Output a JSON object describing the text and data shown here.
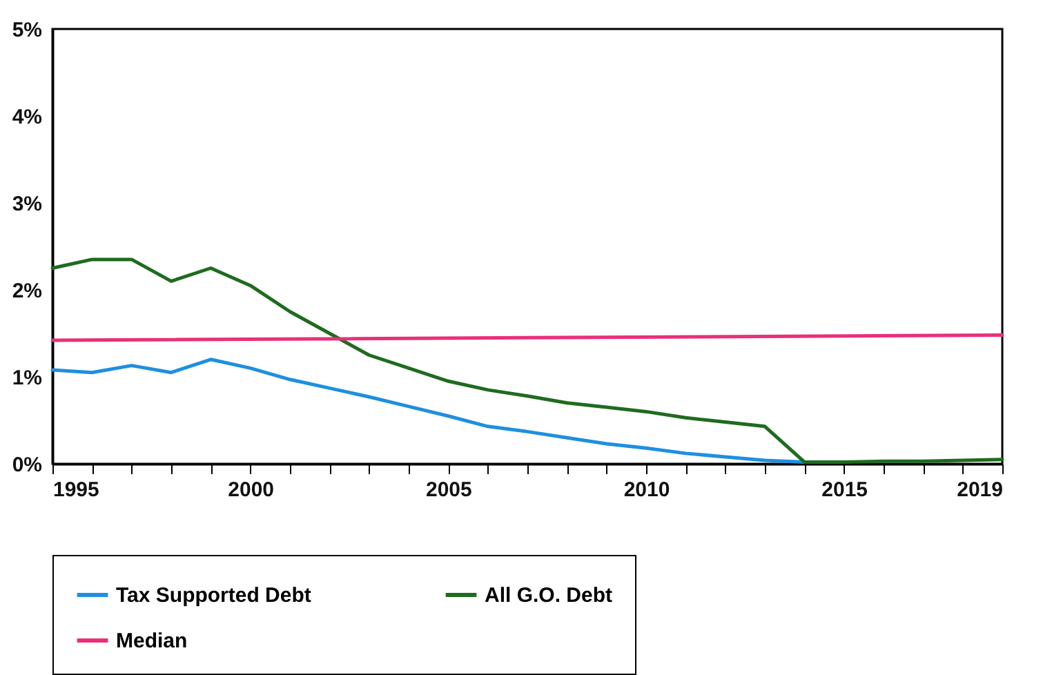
{
  "chart_data": {
    "type": "line",
    "x": [
      1995,
      1996,
      1997,
      1998,
      1999,
      2000,
      2001,
      2002,
      2003,
      2004,
      2005,
      2006,
      2007,
      2008,
      2009,
      2010,
      2011,
      2012,
      2013,
      2014,
      2015,
      2016,
      2017,
      2018,
      2019
    ],
    "series": [
      {
        "name": "Tax Supported Debt",
        "color": "#1e8fe0",
        "values": [
          1.08,
          1.05,
          1.13,
          1.05,
          1.2,
          1.1,
          0.97,
          0.87,
          0.77,
          0.66,
          0.55,
          0.43,
          0.37,
          0.3,
          0.23,
          0.18,
          0.12,
          0.08,
          0.04,
          0.02,
          null,
          null,
          null,
          null,
          null
        ]
      },
      {
        "name": "All G.O. Debt",
        "color": "#1f6b1f",
        "values": [
          2.25,
          2.35,
          2.35,
          2.1,
          2.25,
          2.05,
          1.75,
          1.5,
          1.25,
          1.1,
          0.95,
          0.85,
          0.78,
          0.7,
          0.65,
          0.6,
          0.53,
          0.48,
          0.43,
          0.02,
          0.02,
          0.03,
          0.03,
          0.04,
          0.05
        ]
      },
      {
        "name": "Median",
        "color": "#e8307a",
        "x": [
          1995,
          2019
        ],
        "values": [
          1.42,
          1.48
        ]
      }
    ],
    "xlim": [
      1995,
      2019
    ],
    "xticks": [
      1995,
      {
        "value": 1996,
        "label": null
      },
      {
        "value": 1997,
        "label": null
      },
      {
        "value": 1998,
        "label": null
      },
      {
        "value": 1999,
        "label": null
      },
      2000,
      {
        "value": 2001,
        "label": null
      },
      {
        "value": 2002,
        "label": null
      },
      {
        "value": 2003,
        "label": null
      },
      {
        "value": 2004,
        "label": null
      },
      2005,
      {
        "value": 2006,
        "label": null
      },
      {
        "value": 2007,
        "label": null
      },
      {
        "value": 2008,
        "label": null
      },
      {
        "value": 2009,
        "label": null
      },
      2010,
      {
        "value": 2011,
        "label": null
      },
      {
        "value": 2012,
        "label": null
      },
      {
        "value": 2013,
        "label": null
      },
      {
        "value": 2014,
        "label": null
      },
      2015,
      {
        "value": 2016,
        "label": null
      },
      {
        "value": 2017,
        "label": null
      },
      {
        "value": 2018,
        "label": null
      },
      2019
    ],
    "ylim": [
      0,
      5
    ],
    "yticks": [
      {
        "value": 0,
        "label": "0%"
      },
      {
        "value": 1,
        "label": "1%"
      },
      {
        "value": 2,
        "label": "2%"
      },
      {
        "value": 3,
        "label": "3%"
      },
      {
        "value": 4,
        "label": "4%"
      },
      {
        "value": 5,
        "label": "5%"
      }
    ],
    "legend": "bottom",
    "grid": false,
    "line_style": "solid",
    "marker": "none"
  }
}
